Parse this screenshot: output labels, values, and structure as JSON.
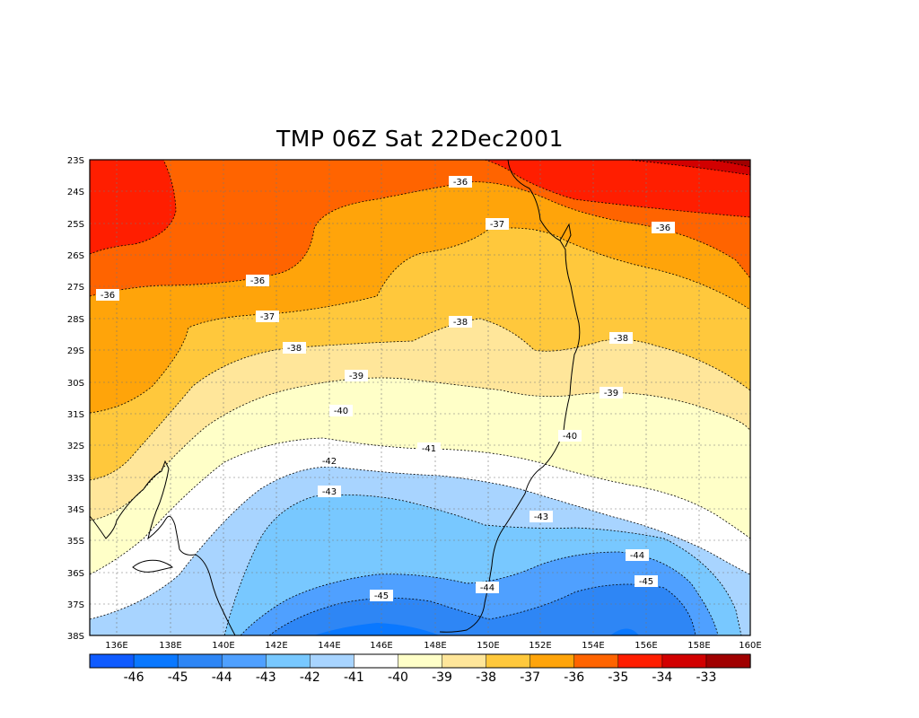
{
  "title": "TMP 06Z Sat 22Dec2001",
  "map": {
    "lon_ticks": [
      "136E",
      "138E",
      "140E",
      "142E",
      "144E",
      "146E",
      "148E",
      "150E",
      "152E",
      "154E",
      "156E",
      "158E",
      "160E"
    ],
    "lat_ticks": [
      "23S",
      "24S",
      "25S",
      "26S",
      "27S",
      "28S",
      "29S",
      "30S",
      "31S",
      "32S",
      "33S",
      "34S",
      "35S",
      "36S",
      "37S",
      "38S"
    ],
    "contour_labels": [
      "-36",
      "-36",
      "-36",
      "-36",
      "-37",
      "-37",
      "-38",
      "-38",
      "-38",
      "-39",
      "-39",
      "-40",
      "-40",
      "-41",
      "-42",
      "-43",
      "-43",
      "-44",
      "-44",
      "-45",
      "-45"
    ]
  },
  "colorbar": {
    "labels": [
      "-46",
      "-45",
      "-44",
      "-43",
      "-42",
      "-41",
      "-40",
      "-39",
      "-38",
      "-37",
      "-36",
      "-35",
      "-34",
      "-33"
    ],
    "colors": [
      "#0f5bff",
      "#0a78ff",
      "#2e86f5",
      "#4fa0ff",
      "#78c8ff",
      "#a8d4ff",
      "#ffffff",
      "#ffffc8",
      "#ffe69a",
      "#ffc83c",
      "#ffa40a",
      "#ff6400",
      "#ff1e00",
      "#d20000",
      "#a00000"
    ]
  }
}
